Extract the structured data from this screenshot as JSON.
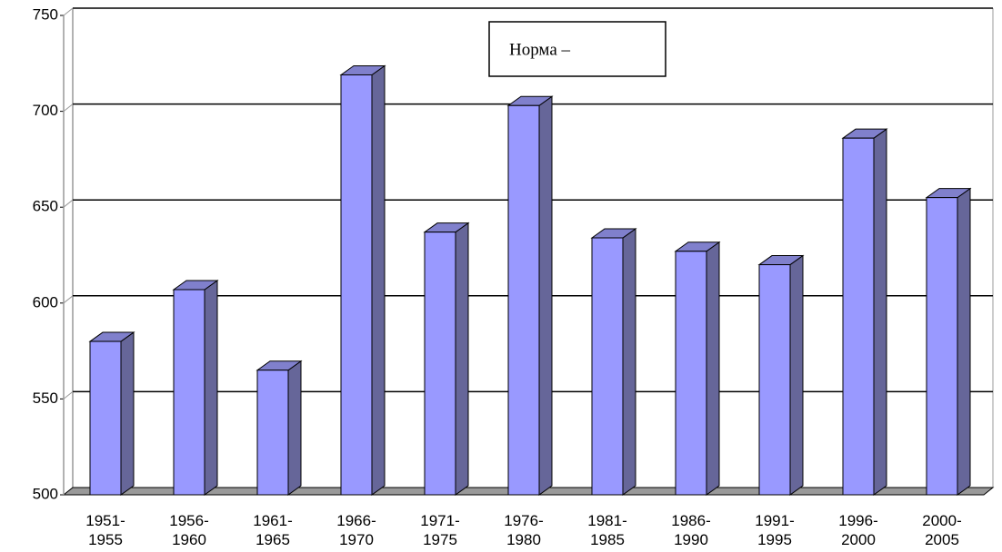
{
  "chart_data": {
    "type": "bar3d",
    "categories": [
      "1951-\n1955",
      "1956-\n1960",
      "1961-\n1965",
      "1966-\n1970",
      "1971-\n1975",
      "1976-\n1980",
      "1981-\n1985",
      "1986-\n1990",
      "1991-\n1995",
      "1996-\n2000",
      "2000-\n2005"
    ],
    "values": [
      580,
      607,
      565,
      719,
      637,
      703,
      634,
      627,
      620,
      686,
      655
    ],
    "color": "#9999ff",
    "ylim": [
      500,
      750
    ],
    "yticks": [
      500,
      550,
      600,
      650,
      700,
      750
    ],
    "grid": true,
    "annotation": "Норма –"
  }
}
